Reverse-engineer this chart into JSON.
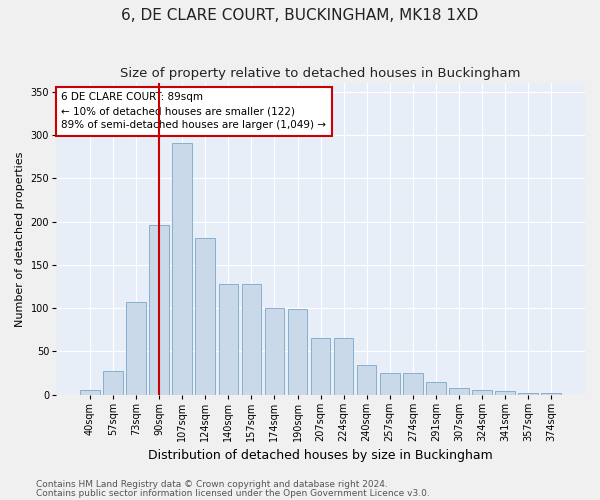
{
  "title": "6, DE CLARE COURT, BUCKINGHAM, MK18 1XD",
  "subtitle": "Size of property relative to detached houses in Buckingham",
  "xlabel": "Distribution of detached houses by size in Buckingham",
  "ylabel": "Number of detached properties",
  "categories": [
    "40sqm",
    "57sqm",
    "73sqm",
    "90sqm",
    "107sqm",
    "124sqm",
    "140sqm",
    "157sqm",
    "174sqm",
    "190sqm",
    "207sqm",
    "224sqm",
    "240sqm",
    "257sqm",
    "274sqm",
    "291sqm",
    "307sqm",
    "324sqm",
    "341sqm",
    "357sqm",
    "374sqm"
  ],
  "values": [
    6,
    27,
    107,
    196,
    291,
    181,
    128,
    128,
    100,
    99,
    65,
    65,
    34,
    25,
    25,
    15,
    8,
    5,
    4,
    2,
    2
  ],
  "bar_color": "#c9d9ea",
  "bar_edge_color": "#7aa8c8",
  "vline_x_index": 3,
  "vline_color": "#cc0000",
  "annotation_text": "6 DE CLARE COURT: 89sqm\n← 10% of detached houses are smaller (122)\n89% of semi-detached houses are larger (1,049) →",
  "annotation_box_color": "#ffffff",
  "annotation_box_edge": "#cc0000",
  "ylim": [
    0,
    360
  ],
  "yticks": [
    0,
    50,
    100,
    150,
    200,
    250,
    300,
    350
  ],
  "fig_bg": "#f0f0f0",
  "plot_bg": "#e8eef8",
  "grid_color": "#ffffff",
  "footer1": "Contains HM Land Registry data © Crown copyright and database right 2024.",
  "footer2": "Contains public sector information licensed under the Open Government Licence v3.0.",
  "title_fontsize": 11,
  "subtitle_fontsize": 9.5,
  "xlabel_fontsize": 9,
  "ylabel_fontsize": 8,
  "tick_fontsize": 7,
  "annot_fontsize": 7.5,
  "footer_fontsize": 6.5
}
